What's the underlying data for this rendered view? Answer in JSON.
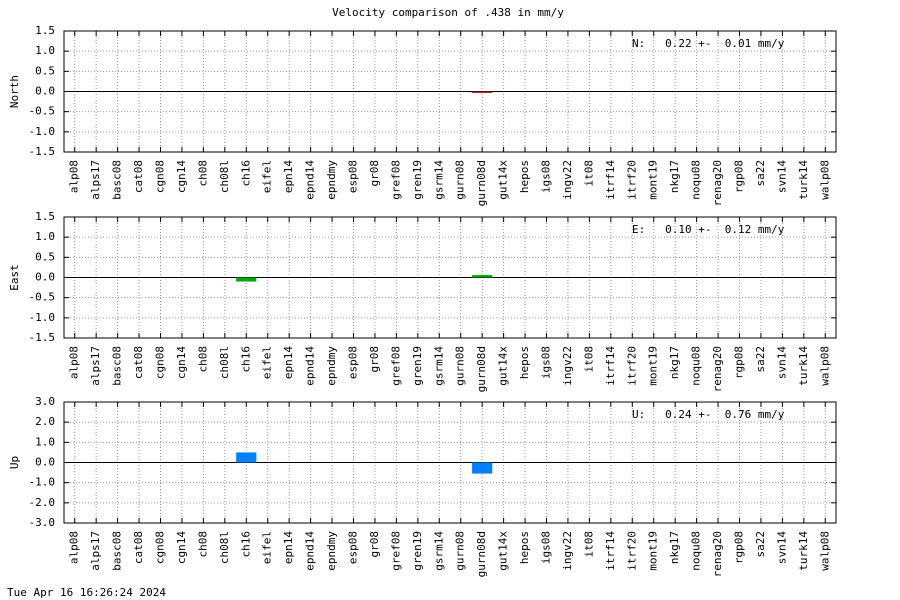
{
  "title": "Velocity comparison of .438 in mm/y",
  "timestamp": "Tue Apr 16 16:26:24 2024",
  "chart_data": [
    {
      "type": "bar",
      "ylabel": "North",
      "annotation": "N:   0.22 +-  0.01 mm/y",
      "color": "#b22222",
      "grid": true,
      "categories": [
        "alp08",
        "alps17",
        "basc08",
        "cat08",
        "cgn08",
        "cgn14",
        "ch08",
        "ch08l",
        "ch16",
        "eifel",
        "epn14",
        "epnd14",
        "epndmy",
        "esp08",
        "gr08",
        "gref08",
        "gren19",
        "gsrm14",
        "gurn08",
        "gurn08d",
        "gut14x",
        "hepos",
        "igs08",
        "ingv22",
        "it08",
        "itrf14",
        "itrf20",
        "mont19",
        "nkg17",
        "noqu08",
        "renag20",
        "rgp08",
        "sa22",
        "svn14",
        "turk14",
        "walp08"
      ],
      "values": [
        null,
        null,
        null,
        null,
        null,
        null,
        null,
        null,
        null,
        null,
        null,
        null,
        null,
        null,
        null,
        null,
        null,
        null,
        null,
        -0.02,
        null,
        null,
        null,
        null,
        null,
        null,
        null,
        null,
        null,
        null,
        null,
        null,
        null,
        null,
        null,
        null
      ],
      "ylim": [
        -1.5,
        1.5
      ],
      "yticks": [
        -1.5,
        {
          "value": -1,
          "label": "-1.0"
        },
        -0.5,
        {
          "value": 0,
          "label": "0.0"
        },
        0.5,
        {
          "value": 1,
          "label": "1.0"
        },
        1.5
      ]
    },
    {
      "type": "bar",
      "ylabel": "East",
      "annotation": "E:   0.10 +-  0.12 mm/y",
      "color": "#00aa00",
      "grid": true,
      "categories": [
        "alp08",
        "alps17",
        "basc08",
        "cat08",
        "cgn08",
        "cgn14",
        "ch08",
        "ch08l",
        "ch16",
        "eifel",
        "epn14",
        "epnd14",
        "epndmy",
        "esp08",
        "gr08",
        "gref08",
        "gren19",
        "gsrm14",
        "gurn08",
        "gurn08d",
        "gut14x",
        "hepos",
        "igs08",
        "ingv22",
        "it08",
        "itrf14",
        "itrf20",
        "mont19",
        "nkg17",
        "noqu08",
        "renag20",
        "rgp08",
        "sa22",
        "svn14",
        "turk14",
        "walp08"
      ],
      "values": [
        null,
        null,
        null,
        null,
        null,
        null,
        null,
        null,
        -0.1,
        null,
        null,
        null,
        null,
        null,
        null,
        null,
        null,
        null,
        null,
        0.06,
        null,
        null,
        null,
        null,
        null,
        null,
        null,
        null,
        null,
        null,
        null,
        null,
        null,
        null,
        null,
        null
      ],
      "ylim": [
        -1.5,
        1.5
      ],
      "yticks": [
        -1.5,
        {
          "value": -1,
          "label": "-1.0"
        },
        -0.5,
        {
          "value": 0,
          "label": "0.0"
        },
        0.5,
        {
          "value": 1,
          "label": "1.0"
        },
        1.5
      ]
    },
    {
      "type": "bar",
      "ylabel": "Up",
      "annotation": "U:   0.24 +-  0.76 mm/y",
      "color": "#0080ff",
      "grid": true,
      "categories": [
        "alp08",
        "alps17",
        "basc08",
        "cat08",
        "cgn08",
        "cgn14",
        "ch08",
        "ch08l",
        "ch16",
        "eifel",
        "epn14",
        "epnd14",
        "epndmy",
        "esp08",
        "gr08",
        "gref08",
        "gren19",
        "gsrm14",
        "gurn08",
        "gurn08d",
        "gut14x",
        "hepos",
        "igs08",
        "ingv22",
        "it08",
        "itrf14",
        "itrf20",
        "mont19",
        "nkg17",
        "noqu08",
        "renag20",
        "rgp08",
        "sa22",
        "svn14",
        "turk14",
        "walp08"
      ],
      "values": [
        null,
        null,
        null,
        null,
        null,
        null,
        null,
        null,
        0.5,
        null,
        null,
        null,
        null,
        null,
        null,
        null,
        null,
        null,
        null,
        -0.55,
        null,
        null,
        null,
        null,
        null,
        null,
        null,
        null,
        null,
        null,
        null,
        null,
        null,
        null,
        null,
        null
      ],
      "ylim": [
        -3,
        3
      ],
      "yticks": [
        {
          "value": -3,
          "label": "-3.0"
        },
        {
          "value": -2,
          "label": "-2.0"
        },
        {
          "value": -1,
          "label": "-1.0"
        },
        {
          "value": 0,
          "label": "0.0"
        },
        {
          "value": 1,
          "label": "1.0"
        },
        {
          "value": 2,
          "label": "2.0"
        },
        {
          "value": 3,
          "label": "3.0"
        }
      ]
    }
  ]
}
